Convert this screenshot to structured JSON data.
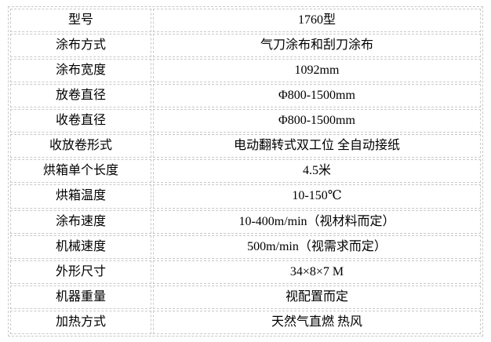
{
  "table": {
    "border_color": "#c9c9c9",
    "text_color": "#000000",
    "rows": [
      {
        "label": "型号",
        "value": "1760型"
      },
      {
        "label": "涂布方式",
        "value": "气刀涂布和刮刀涂布"
      },
      {
        "label": "涂布宽度",
        "value": "1092mm"
      },
      {
        "label": "放卷直径",
        "value": "Φ800-1500mm"
      },
      {
        "label": "收卷直径",
        "value": "Φ800-1500mm"
      },
      {
        "label": "收放卷形式",
        "value": "电动翻转式双工位 全自动接纸"
      },
      {
        "label": "烘箱单个长度",
        "value": "4.5米"
      },
      {
        "label": "烘箱温度",
        "value": "10-150℃"
      },
      {
        "label": "涂布速度",
        "value": "10-400m/min（视材料而定）"
      },
      {
        "label": "机械速度",
        "value": "500m/min（视需求而定）"
      },
      {
        "label": "外形尺寸",
        "value": "34×8×7 M"
      },
      {
        "label": "机器重量",
        "value": "视配置而定"
      },
      {
        "label": "加热方式",
        "value": "天然气直燃 热风"
      }
    ]
  }
}
